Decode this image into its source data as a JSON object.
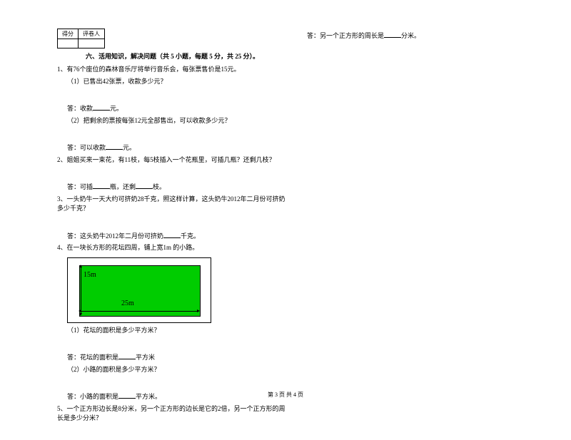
{
  "scoreTable": {
    "left": "得分",
    "right": "评卷人"
  },
  "section": {
    "title": "六、活用知识，解决问题（共 5 小题，每题 5 分，共 25 分）。"
  },
  "q1": {
    "stem": "1、有76个座位的森林音乐厅将举行音乐会，每张票售价是15元。",
    "p1": "（1）已售出42张票，收款多少元？",
    "a1_pre": "答：收款",
    "a1_post": "元。",
    "p2": "（2）把剩余的票按每张12元全部售出，可以收款多少元？",
    "a2_pre": "答：可以收款",
    "a2_post": "元。"
  },
  "q2": {
    "stem": "2、姐姐买来一束花，有11枝，每5枝插入一个花瓶里，可插几瓶？还剩几枝？",
    "a_pre": "答：可插",
    "a_mid": "瓶，还剩",
    "a_post": "枝。"
  },
  "q3": {
    "stem": "3、一头奶牛一天大约可挤奶28千克，照这样计算，这头奶牛2012年二月份可挤奶多少千克？",
    "a_pre": "答：这头奶牛2012年二月份可挤奶",
    "a_post": "千克。"
  },
  "q4": {
    "stem": "4、在一块长方形的花坛四周，铺上宽1m 的小路。",
    "diagram": {
      "width_label": "25m",
      "height_label": "15m",
      "inner_color": "#00cc00",
      "border_color": "#000000"
    },
    "p1": "（1）花坛的面积是多少平方米？",
    "a1_pre": "答：花坛的面积是",
    "a1_post": "平方米",
    "p2": "（2）小路的面积是多少平方米？",
    "a2_pre": "答：小路的面积是",
    "a2_post": "平方米。"
  },
  "q5": {
    "stem": "5、一个正方形边长是8分米，另一个正方形的边长是它的2倍，另一个正方形的周长是多少分米？",
    "a_pre": "答：另一个正方形的周长是",
    "a_post": "分米。"
  },
  "footer": "第 3 页 共 4 页"
}
